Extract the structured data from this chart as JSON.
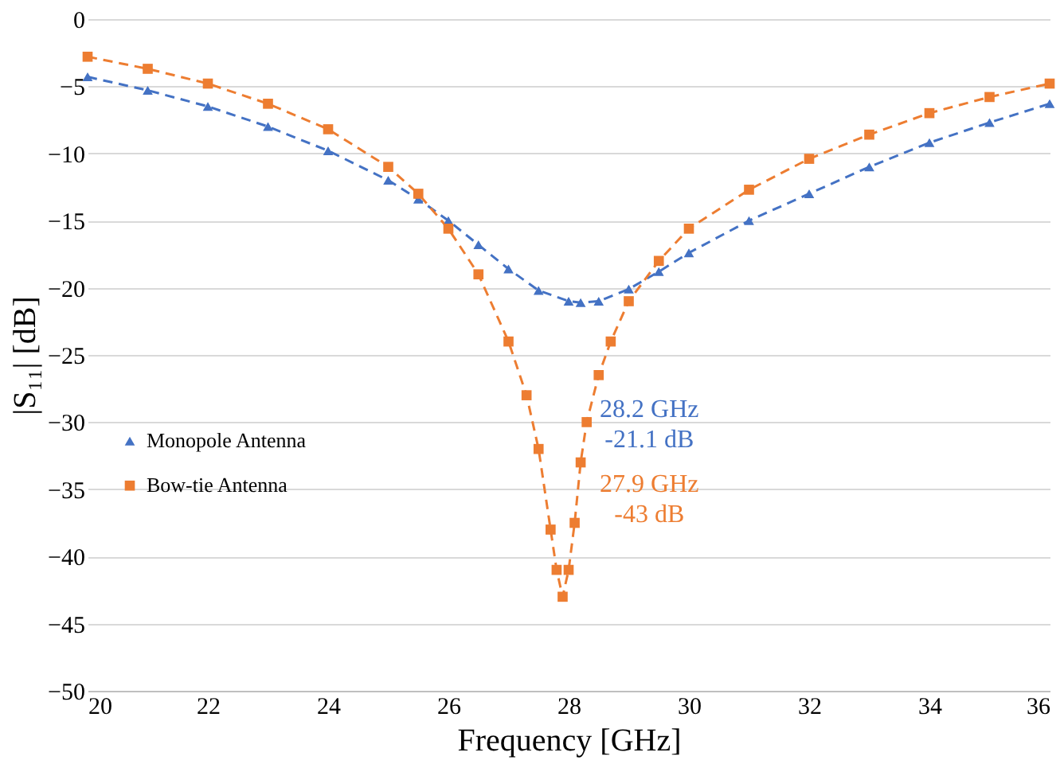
{
  "chart_data": {
    "type": "line",
    "xlabel": "Frequency [GHz]",
    "ylabel": "|S₁₁| [dB]",
    "xlim": [
      20,
      36
    ],
    "xticks": [
      20,
      22,
      24,
      26,
      28,
      30,
      32,
      34,
      36
    ],
    "ylim": [
      -50,
      0
    ],
    "yticks": [
      -50,
      -45,
      -40,
      -35,
      -30,
      -25,
      -20,
      -15,
      -10,
      -5,
      0
    ],
    "grid": "y",
    "legend": "left",
    "line_style": "dashed",
    "series": [
      {
        "name": "Monopole Antenna",
        "color": "#4472c4",
        "marker": "triangle",
        "x": [
          20,
          21,
          22,
          23,
          24,
          25,
          25.5,
          26,
          26.5,
          27,
          27.5,
          28,
          28.2,
          28.5,
          29,
          29.5,
          30,
          31,
          32,
          33,
          34,
          35,
          36
        ],
        "values": [
          -4.3,
          -5.3,
          -6.5,
          -8,
          -9.8,
          -12,
          -13.4,
          -15,
          -16.8,
          -18.6,
          -20.2,
          -21,
          -21.1,
          -21,
          -20.1,
          -18.8,
          -17.4,
          -15,
          -13,
          -11,
          -9.2,
          -7.7,
          -6.3
        ]
      },
      {
        "name": "Bow-tie Antenna",
        "color": "#ed7d31",
        "marker": "square",
        "x": [
          20,
          21,
          22,
          23,
          24,
          25,
          25.5,
          26,
          26.5,
          27,
          27.3,
          27.5,
          27.7,
          27.8,
          27.9,
          28,
          28.1,
          28.2,
          28.3,
          28.5,
          28.7,
          29,
          29.5,
          30,
          31,
          32,
          33,
          34,
          35,
          36
        ],
        "values": [
          -2.8,
          -3.7,
          -4.8,
          -6.3,
          -8.2,
          -11,
          -13,
          -15.6,
          -19,
          -24,
          -28,
          -32,
          -38,
          -41,
          -43,
          -41,
          -37.5,
          -33,
          -30,
          -26.5,
          -24,
          -21,
          -18,
          -15.6,
          -12.7,
          -10.4,
          -8.6,
          -7,
          -5.8,
          -4.8
        ]
      }
    ],
    "annotations": [
      "28.2 GHz",
      "-21.1 dB",
      "27.9 GHz",
      "-43 dB"
    ]
  }
}
